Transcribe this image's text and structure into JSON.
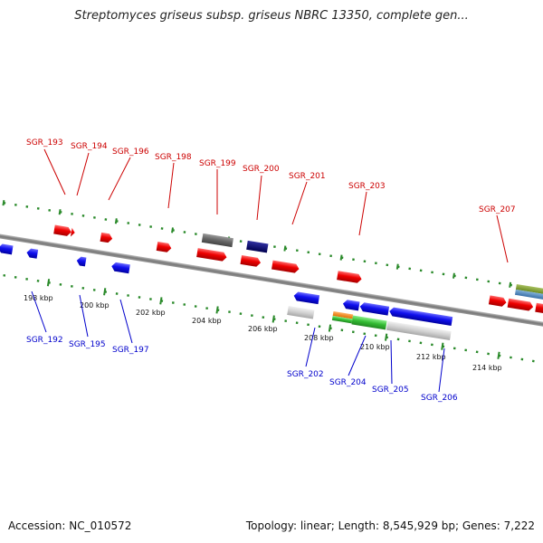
{
  "title": "Streptomyces griseus subsp. griseus NBRC 13350, complete gen...",
  "footer": {
    "accession": "Accession: NC_010572",
    "topology": "Topology: linear; Length: 8,545,929 bp; Genes: 7,222"
  },
  "colors": {
    "forward_label": "#cc0000",
    "reverse_label": "#0000cc",
    "tick": "#2a8a2a",
    "backbone": "#777777"
  },
  "scale_labels": [
    "198 kbp",
    "200 kbp",
    "202 kbp",
    "204 kbp",
    "206 kbp",
    "208 kbp",
    "210 kbp",
    "212 kbp",
    "214 kbp"
  ],
  "gene_labels": [
    {
      "text": "SGR_193",
      "strand": "+"
    },
    {
      "text": "SGR_194",
      "strand": "+"
    },
    {
      "text": "SGR_196",
      "strand": "+"
    },
    {
      "text": "SGR_198",
      "strand": "+"
    },
    {
      "text": "SGR_199",
      "strand": "+"
    },
    {
      "text": "SGR_200",
      "strand": "+"
    },
    {
      "text": "SGR_201",
      "strand": "+"
    },
    {
      "text": "SGR_203",
      "strand": "+"
    },
    {
      "text": "SGR_207",
      "strand": "+"
    },
    {
      "text": "SGR_192",
      "strand": "-"
    },
    {
      "text": "SGR_195",
      "strand": "-"
    },
    {
      "text": "SGR_197",
      "strand": "-"
    },
    {
      "text": "SGR_202",
      "strand": "-"
    },
    {
      "text": "SGR_204",
      "strand": "-"
    },
    {
      "text": "SGR_205",
      "strand": "-"
    },
    {
      "text": "SGR_206",
      "strand": "-"
    }
  ]
}
